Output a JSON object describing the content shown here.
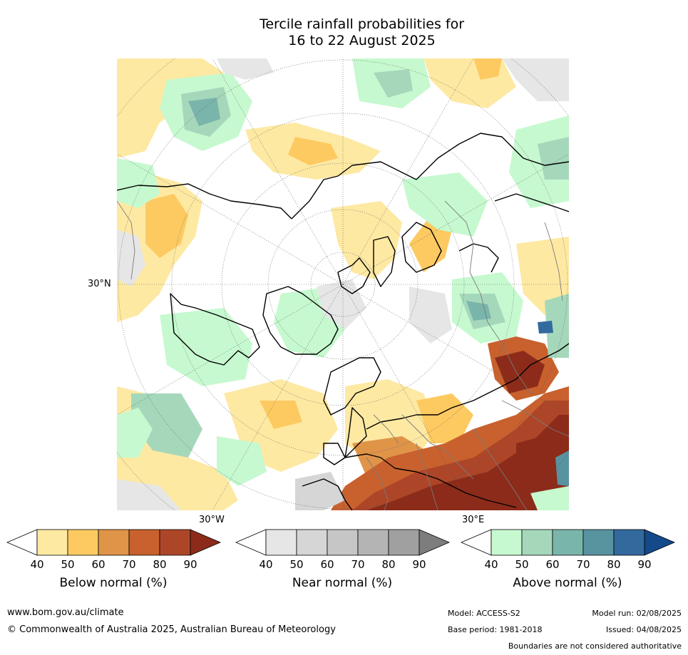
{
  "title_line1": "Tercile rainfall probabilities for",
  "title_line2": "16 to 22 August 2025",
  "map": {
    "projection": "north-polar-stereographic",
    "axis_labels": {
      "lat_30n": "30°N",
      "lon_30w": "30°W",
      "lon_30e": "30°E"
    }
  },
  "legends": {
    "below": {
      "label": "Below normal (%)",
      "ticks": [
        "40",
        "50",
        "60",
        "70",
        "80",
        "90"
      ],
      "colors": [
        "#ffffff",
        "#fee9a3",
        "#fdca62",
        "#e09448",
        "#c8612e",
        "#ad4628",
        "#8c2b1a"
      ]
    },
    "near": {
      "label": "Near normal (%)",
      "ticks": [
        "40",
        "50",
        "60",
        "70",
        "80",
        "90"
      ],
      "colors": [
        "#ffffff",
        "#e6e6e6",
        "#d6d6d6",
        "#c6c6c6",
        "#b4b4b4",
        "#a0a0a0",
        "#7d7d7d"
      ]
    },
    "above": {
      "label": "Above normal (%)",
      "ticks": [
        "40",
        "50",
        "60",
        "70",
        "80",
        "90"
      ],
      "colors": [
        "#ffffff",
        "#c6f9cf",
        "#a5d8bb",
        "#7ab5ab",
        "#5893a0",
        "#336a9e",
        "#14498a"
      ]
    }
  },
  "footer": {
    "website": "www.bom.gov.au/climate",
    "copyright": "© Commonwealth of Australia 2025, Australian Bureau of Meteorology",
    "model": "Model: ACCESS-S2",
    "base_period": "Base period: 1981-2018",
    "model_run": "Model run: 02/08/2025",
    "issued": "Issued: 04/08/2025",
    "disclaimer": "Boundaries are not considered authoritative"
  }
}
